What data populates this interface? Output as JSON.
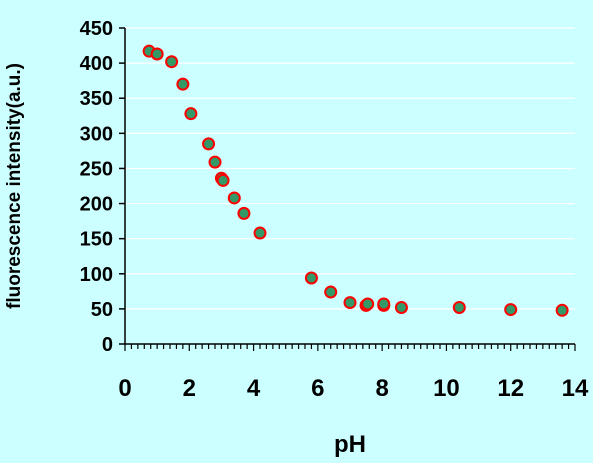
{
  "chart_data": {
    "type": "scatter",
    "title": "",
    "xlabel": "pH",
    "ylabel": "fluorescence intensity(a.u.)",
    "xlim": [
      0,
      14
    ],
    "ylim": [
      0,
      450
    ],
    "x_ticks": [
      0,
      2,
      4,
      6,
      8,
      10,
      12,
      14
    ],
    "y_ticks": [
      0,
      50,
      100,
      150,
      200,
      250,
      300,
      350,
      400,
      450
    ],
    "x_minor_step": 0.2,
    "grid": "horizontal major lines",
    "legend": "none",
    "colors": {
      "background": "#ccffff",
      "gridline": "#ffffff",
      "marker_fill": "#339966",
      "marker_edge": "#ff0000",
      "axis": "#000000"
    },
    "series": [
      {
        "points": [
          {
            "x": 0.75,
            "y": 417
          },
          {
            "x": 1.0,
            "y": 413
          },
          {
            "x": 1.45,
            "y": 402
          },
          {
            "x": 1.8,
            "y": 370
          },
          {
            "x": 2.05,
            "y": 328
          },
          {
            "x": 2.6,
            "y": 285
          },
          {
            "x": 2.8,
            "y": 259
          },
          {
            "x": 3.0,
            "y": 236
          },
          {
            "x": 3.05,
            "y": 233
          },
          {
            "x": 3.4,
            "y": 208
          },
          {
            "x": 3.7,
            "y": 186
          },
          {
            "x": 4.2,
            "y": 158
          },
          {
            "x": 5.8,
            "y": 94
          },
          {
            "x": 6.4,
            "y": 74
          },
          {
            "x": 7.0,
            "y": 59
          },
          {
            "x": 7.5,
            "y": 55
          },
          {
            "x": 7.55,
            "y": 57
          },
          {
            "x": 8.05,
            "y": 55
          },
          {
            "x": 8.05,
            "y": 57
          },
          {
            "x": 8.6,
            "y": 52
          },
          {
            "x": 10.4,
            "y": 52
          },
          {
            "x": 12.0,
            "y": 49
          },
          {
            "x": 13.6,
            "y": 48
          }
        ]
      }
    ]
  }
}
